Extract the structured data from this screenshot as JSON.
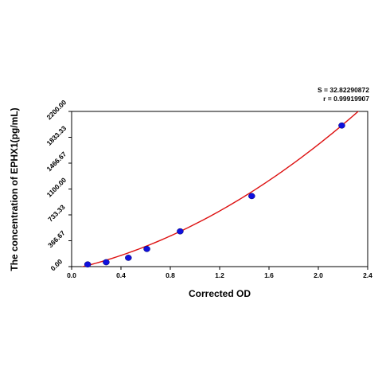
{
  "chart_data": {
    "type": "scatter",
    "xlabel": "Corrected OD",
    "ylabel": "The concentration of EPHX1(pg/mL)",
    "xlim": [
      0,
      2.4
    ],
    "ylim": [
      0,
      2200
    ],
    "x_ticks": [
      "0.0",
      "0.4",
      "0.8",
      "1.2",
      "1.6",
      "2.0",
      "2.4"
    ],
    "y_ticks": [
      "0.00",
      "366.67",
      "733.33",
      "1100.00",
      "1466.67",
      "1833.33",
      "2200.00"
    ],
    "grid": false,
    "stats": {
      "s_text": "S = 32.82290872",
      "r_text": "r = 0.99919907"
    },
    "points": [
      {
        "x": 0.13,
        "y": 31
      },
      {
        "x": 0.28,
        "y": 62
      },
      {
        "x": 0.46,
        "y": 125
      },
      {
        "x": 0.61,
        "y": 250
      },
      {
        "x": 0.88,
        "y": 500
      },
      {
        "x": 1.46,
        "y": 1000
      },
      {
        "x": 2.19,
        "y": 2000
      }
    ],
    "fit_curve": {
      "type": "polynomial-2",
      "coefficients": [
        -39.45,
        396.97,
        244.1
      ],
      "x_range": [
        0.06,
        2.35
      ]
    },
    "colors": {
      "points": "#1010dd",
      "curve": "#dd1010",
      "axes": "#000000"
    }
  }
}
